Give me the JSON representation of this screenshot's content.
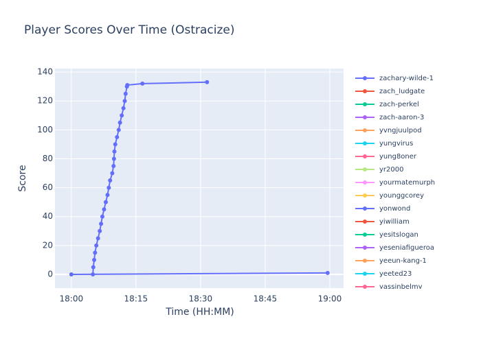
{
  "chart_data": {
    "type": "line",
    "title": "Player Scores Over Time (Ostracize)",
    "x_label": "Time (HH:MM)",
    "y_label": "Score",
    "xlim": [
      1076.2,
      1143.2
    ],
    "ylim": [
      -9.5,
      142.4
    ],
    "xticks": [
      {
        "value": 1080,
        "label": "18:00"
      },
      {
        "value": 1095,
        "label": "18:15"
      },
      {
        "value": 1110,
        "label": "18:30"
      },
      {
        "value": 1125,
        "label": "18:45"
      },
      {
        "value": 1140,
        "label": "19:00"
      }
    ],
    "yticks": [
      0,
      20,
      40,
      60,
      80,
      100,
      120,
      140
    ],
    "grid": true,
    "series": [
      {
        "name": "zachary-wilde-1",
        "color": "#636efa",
        "x": [
          1085.0,
          1085.1,
          1085.3,
          1085.5,
          1085.8,
          1086.2,
          1086.6,
          1086.9,
          1087.2,
          1087.6,
          1088.0,
          1088.4,
          1088.7,
          1089.0,
          1089.5,
          1089.8,
          1089.9,
          1090.0,
          1090.2,
          1090.6,
          1091.0,
          1091.3,
          1091.7,
          1092.1,
          1092.4,
          1092.6,
          1092.9,
          1093.0,
          1096.5,
          1111.5
        ],
        "values": [
          0,
          5,
          10,
          15,
          20,
          25,
          30,
          35,
          40,
          45,
          50,
          55,
          60,
          65,
          70,
          75,
          80,
          85,
          90,
          95,
          100,
          105,
          110,
          115,
          120,
          125,
          130,
          131,
          132,
          133
        ]
      },
      {
        "name": "zach_ludgate",
        "color": "#EF553B",
        "x": [],
        "values": []
      },
      {
        "name": "zach-perkel",
        "color": "#00cc96",
        "x": [],
        "values": []
      },
      {
        "name": "zach-aaron-3",
        "color": "#ab63fa",
        "x": [],
        "values": []
      },
      {
        "name": "yvngjuulpod",
        "color": "#FFA15A",
        "x": [
          1080
        ],
        "values": [
          0
        ]
      },
      {
        "name": "yungvirus",
        "color": "#19d3f3",
        "x": [],
        "values": []
      },
      {
        "name": "yung8oner",
        "color": "#FF6692",
        "x": [],
        "values": []
      },
      {
        "name": "yr2000",
        "color": "#B6E880",
        "x": [],
        "values": []
      },
      {
        "name": "yourmatemurph",
        "color": "#FF97FF",
        "x": [],
        "values": []
      },
      {
        "name": "younggcorey",
        "color": "#FECB52",
        "x": [],
        "values": []
      },
      {
        "name": "yonwond",
        "color": "#636efa",
        "x": [
          1080,
          1139.5
        ],
        "values": [
          0,
          1
        ]
      },
      {
        "name": "yiwilliam",
        "color": "#EF553B",
        "x": [],
        "values": []
      },
      {
        "name": "yesitslogan",
        "color": "#00cc96",
        "x": [],
        "values": []
      },
      {
        "name": "yeseniafigueroa",
        "color": "#ab63fa",
        "x": [],
        "values": []
      },
      {
        "name": "yeeun-kang-1",
        "color": "#FFA15A",
        "x": [],
        "values": []
      },
      {
        "name": "yeeted23",
        "color": "#19d3f3",
        "x": [],
        "values": []
      },
      {
        "name": "yassinbelmy",
        "color": "#FF6692",
        "x": [],
        "values": []
      }
    ]
  }
}
